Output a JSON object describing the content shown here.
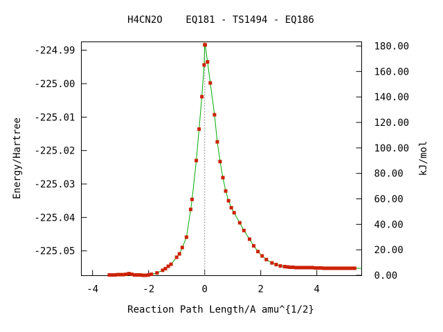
{
  "chart_data": {
    "type": "line",
    "title": "H4CN2O    EQ181 - TS1494 - EQ186",
    "xlabel": "Reaction Path Length/A amu^{1/2}",
    "ylabel_left": "Energy/Hartree",
    "ylabel_right": "kJ/mol",
    "xlim": [
      -4.4,
      5.6
    ],
    "ylim": [
      -225.0574,
      -224.9875
    ],
    "x_ticks": [
      {
        "value": -4,
        "label": "-4"
      },
      {
        "value": -2,
        "label": "-2"
      },
      {
        "value": 0,
        "label": "0"
      },
      {
        "value": 2,
        "label": "2"
      },
      {
        "value": 4,
        "label": "4"
      }
    ],
    "y_left_ticks": [
      {
        "value": -224.99,
        "label": "-224.99"
      },
      {
        "value": -225.0,
        "label": "-225.00"
      },
      {
        "value": -225.01,
        "label": "-225.01"
      },
      {
        "value": -225.02,
        "label": "-225.02"
      },
      {
        "value": -225.03,
        "label": "-225.03"
      },
      {
        "value": -225.04,
        "label": "-225.04"
      },
      {
        "value": -225.05,
        "label": "-225.05"
      }
    ],
    "y_right_ticks": [
      {
        "value": 0,
        "label": "0.00"
      },
      {
        "value": 20,
        "label": "20.00"
      },
      {
        "value": 40,
        "label": "40.00"
      },
      {
        "value": 60,
        "label": "60.00"
      },
      {
        "value": 80,
        "label": "80.00"
      },
      {
        "value": 100,
        "label": "100.00"
      },
      {
        "value": 120,
        "label": "120.00"
      },
      {
        "value": 140,
        "label": "140.00"
      },
      {
        "value": 160,
        "label": "160.00"
      },
      {
        "value": 180,
        "label": "180.00"
      }
    ],
    "right_axis_zero_hartree": -225.0573,
    "hartree_to_kj": 2625.5,
    "transition_state_x": 0,
    "grid": false,
    "legend": "none",
    "colors": {
      "curve": "#00aa00",
      "points": "#cc2200",
      "ts_line": "#888888",
      "axis": "#000000"
    },
    "series": [
      {
        "x": [
          -3.4,
          -3.3,
          -3.2,
          -3.1,
          -3.0,
          -2.9,
          -2.8,
          -2.7,
          -2.6,
          -2.5,
          -2.4,
          -2.3,
          -2.2,
          -2.1,
          -2.0,
          -1.9,
          -1.7,
          -1.5,
          -1.4,
          -1.3,
          -1.2,
          -1.0,
          -0.9,
          -0.8,
          -0.65,
          -0.5,
          -0.45,
          -0.3,
          -0.2,
          -0.1,
          -0.02,
          0.0,
          0.02,
          0.1,
          0.2,
          0.35,
          0.45,
          0.55,
          0.65,
          0.75,
          0.85,
          0.95,
          1.05,
          1.25,
          1.4,
          1.6,
          1.75,
          1.9,
          2.05,
          2.2,
          2.4,
          2.55,
          2.7,
          2.85,
          2.95,
          3.05,
          3.15,
          3.25,
          3.35,
          3.45,
          3.55,
          3.65,
          3.75,
          3.85,
          3.95,
          4.05,
          4.15,
          4.25,
          4.35,
          4.45,
          4.55,
          4.65,
          4.75,
          4.85,
          4.95,
          5.05,
          5.15,
          5.25,
          5.35
        ],
        "y": [
          -225.0572,
          -225.0572,
          -225.0572,
          -225.0571,
          -225.0571,
          -225.0571,
          -225.057,
          -225.0568,
          -225.057,
          -225.0572,
          -225.0572,
          -225.0572,
          -225.0573,
          -225.0573,
          -225.0572,
          -225.057,
          -225.0566,
          -225.0558,
          -225.0553,
          -225.0546,
          -225.054,
          -225.0519,
          -225.0509,
          -225.049,
          -225.0459,
          -225.0376,
          -225.0346,
          -225.023,
          -225.0136,
          -225.0039,
          -224.9944,
          -224.9884,
          -224.9884,
          -224.9935,
          -224.9998,
          -225.0093,
          -225.0174,
          -225.0233,
          -225.0281,
          -225.0321,
          -225.035,
          -225.0371,
          -225.0386,
          -225.0416,
          -225.0439,
          -225.0465,
          -225.0485,
          -225.0502,
          -225.0515,
          -225.0526,
          -225.0536,
          -225.0541,
          -225.0545,
          -225.0547,
          -225.0548,
          -225.0549,
          -225.0549,
          -225.055,
          -225.055,
          -225.055,
          -225.055,
          -225.055,
          -225.055,
          -225.055,
          -225.0551,
          -225.0551,
          -225.0551,
          -225.0552,
          -225.0552,
          -225.0552,
          -225.0552,
          -225.0552,
          -225.0552,
          -225.0552,
          -225.0552,
          -225.0552,
          -225.0552,
          -225.0552,
          -225.0552
        ]
      }
    ]
  }
}
